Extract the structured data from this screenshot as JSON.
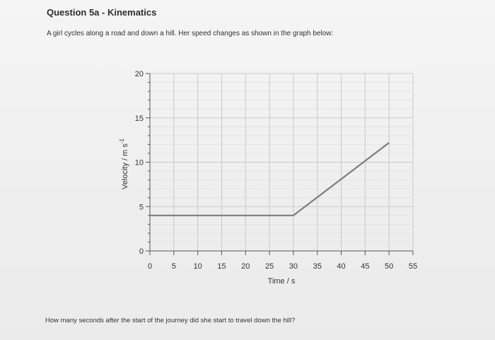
{
  "page": {
    "title": "Question 5a - Kinematics",
    "prompt": "A girl cycles along a road and down a hill. Her speed changes as shown in the graph below:",
    "question": "How many seconds after the start of the journey did she start to travel down the hill?"
  },
  "colors": {
    "line": "#7c7c7c",
    "grid_major": "#c9c9c9",
    "grid_minor": "#e0e0e0",
    "axis": "#555555"
  },
  "chart_data": {
    "type": "line",
    "title": "",
    "xlabel": "Time / s",
    "ylabel": "Velocity / m s",
    "ylabel_superscript": "-1",
    "xlim": [
      0,
      55
    ],
    "ylim": [
      0,
      20
    ],
    "x_ticks": [
      "0",
      "5",
      "10",
      "15",
      "20",
      "25",
      "30",
      "35",
      "40",
      "45",
      "50",
      "55"
    ],
    "y_ticks": [
      "0",
      "5",
      "10",
      "15",
      "20"
    ],
    "grid": true,
    "series": [
      {
        "x": [
          0,
          30,
          50
        ],
        "y": [
          4,
          4,
          12.2
        ]
      }
    ]
  }
}
